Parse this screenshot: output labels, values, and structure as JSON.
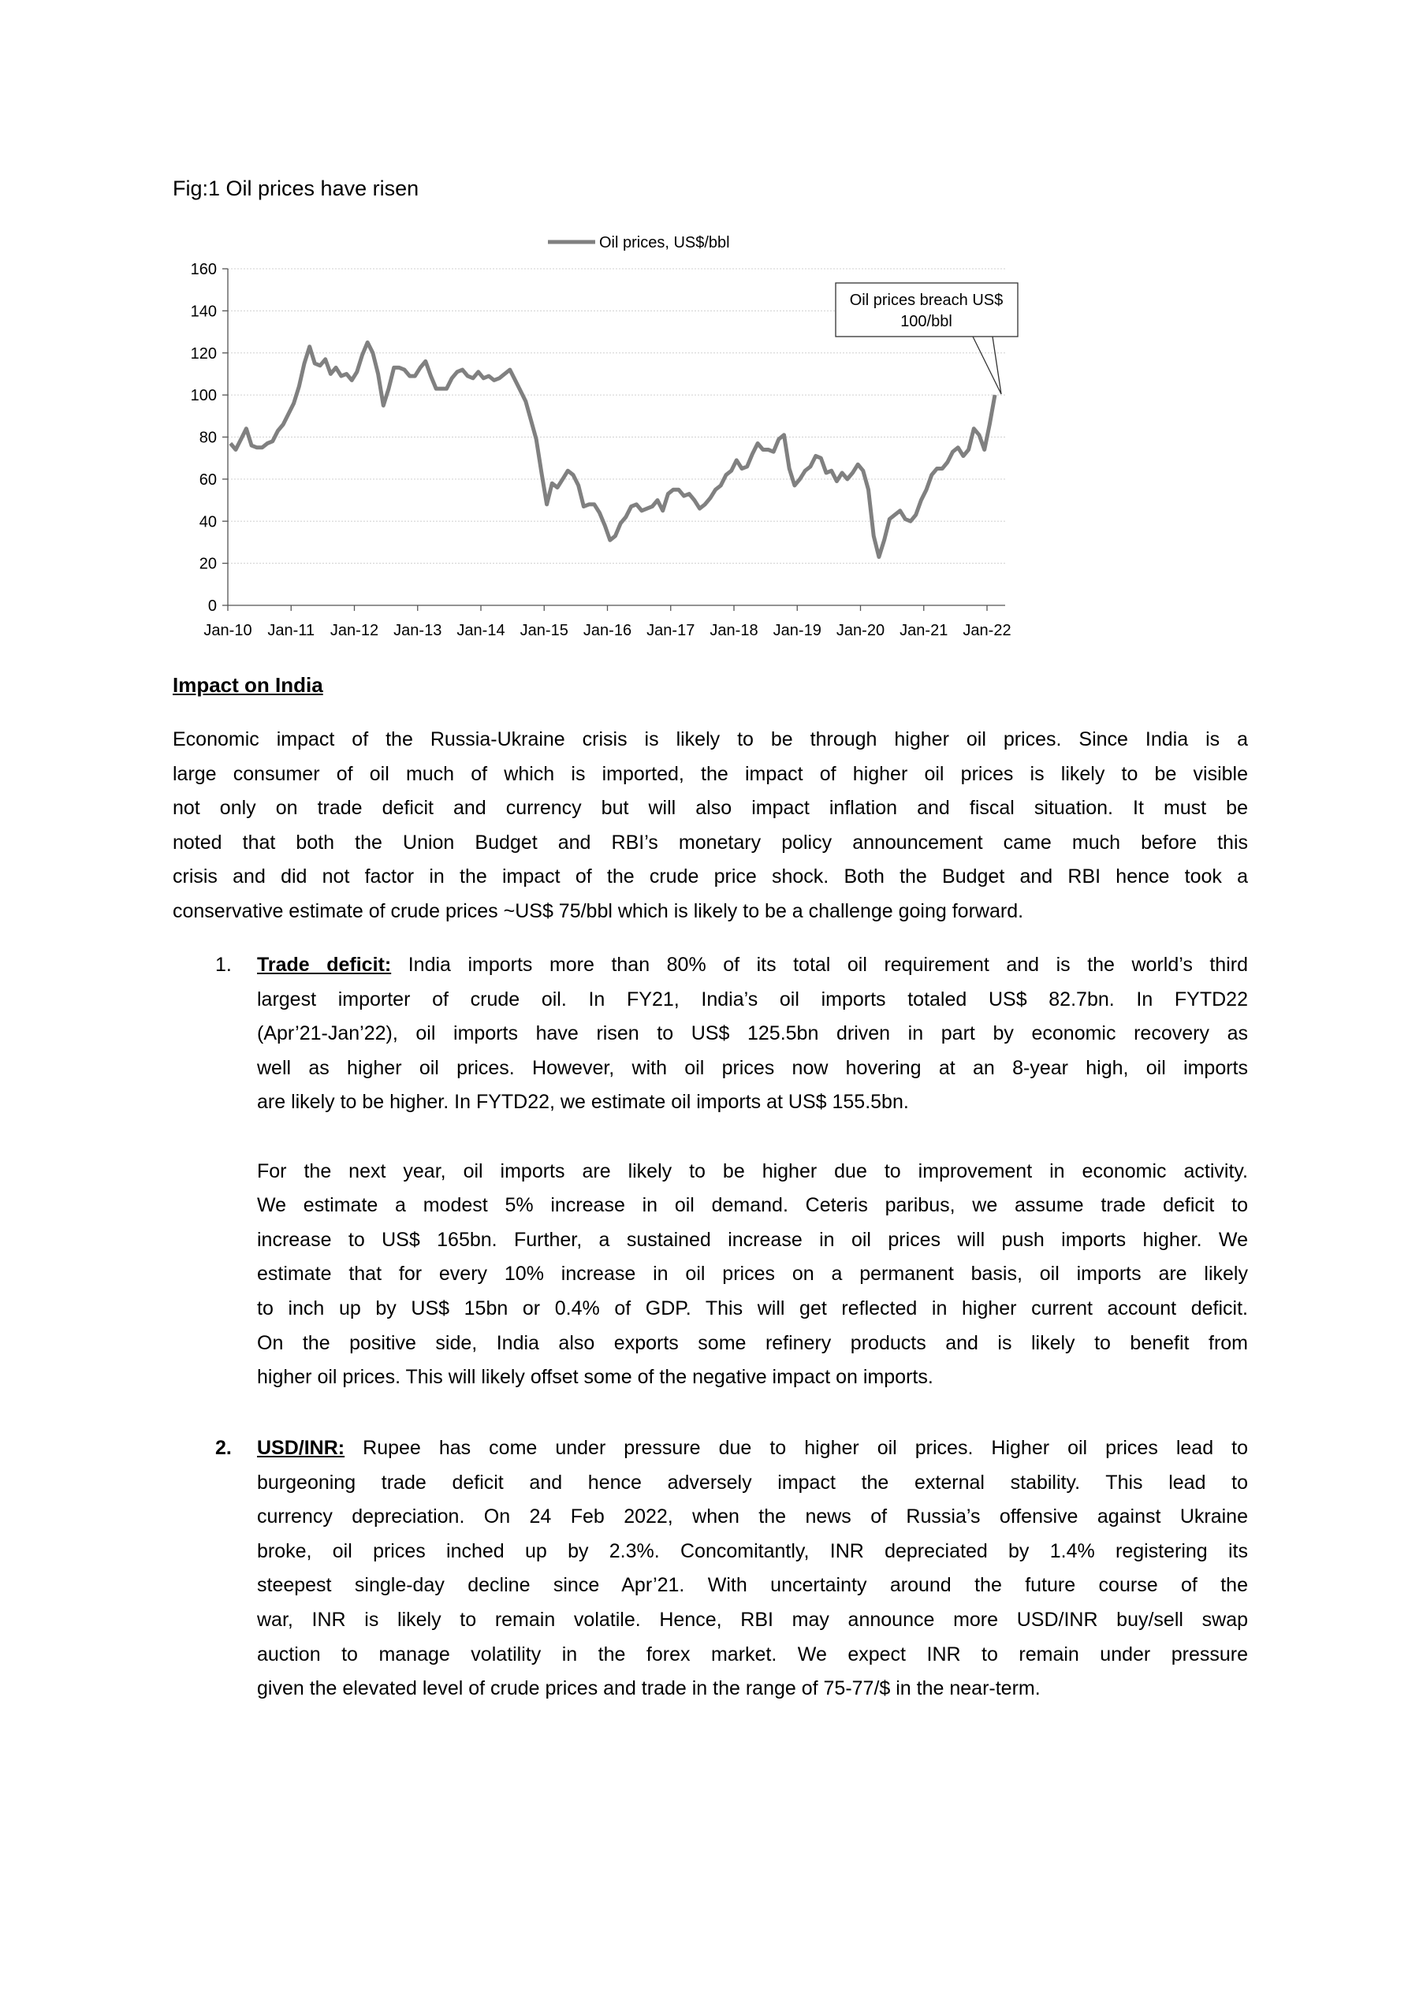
{
  "figure": {
    "title": "Fig:1 Oil prices have risen"
  },
  "chart_data": {
    "type": "line",
    "title": "",
    "legend": {
      "entries": [
        "Oil prices, US$/bbl"
      ],
      "placement": "top-center"
    },
    "series": [
      {
        "name": "Oil prices, US$/bbl",
        "color": "#808080",
        "x_start": "Jan-10",
        "frequency": "monthly",
        "values": [
          77,
          74,
          79,
          84,
          76,
          75,
          75,
          77,
          78,
          83,
          86,
          91,
          96,
          104,
          115,
          123,
          115,
          114,
          117,
          110,
          113,
          109,
          110,
          107,
          111,
          119,
          125,
          120,
          110,
          95,
          103,
          113,
          113,
          112,
          109,
          109,
          113,
          116,
          109,
          103,
          103,
          103,
          108,
          111,
          112,
          109,
          108,
          111,
          108,
          109,
          107,
          108,
          110,
          112,
          107,
          102,
          97,
          88,
          79,
          63,
          48,
          58,
          56,
          60,
          64,
          62,
          57,
          47,
          48,
          48,
          44,
          38,
          31,
          33,
          39,
          42,
          47,
          48,
          45,
          46,
          47,
          50,
          45,
          53,
          55,
          55,
          52,
          53,
          50,
          46,
          48,
          51,
          55,
          57,
          62,
          64,
          69,
          65,
          66,
          72,
          77,
          74,
          74,
          73,
          79,
          81,
          65,
          57,
          60,
          64,
          66,
          71,
          70,
          63,
          64,
          59,
          63,
          60,
          63,
          67,
          64,
          55,
          33,
          23,
          31,
          41,
          43,
          45,
          41,
          40,
          43,
          50,
          55,
          62,
          65,
          65,
          68,
          73,
          75,
          71,
          74,
          84,
          81,
          74,
          86,
          100
        ]
      }
    ],
    "x_tick_labels": [
      "Jan-10",
      "Jan-11",
      "Jan-12",
      "Jan-13",
      "Jan-14",
      "Jan-15",
      "Jan-16",
      "Jan-17",
      "Jan-18",
      "Jan-19",
      "Jan-20",
      "Jan-21",
      "Jan-22"
    ],
    "y_ticks": [
      0,
      20,
      40,
      60,
      80,
      100,
      120,
      140,
      160
    ],
    "ylim": [
      0,
      160
    ],
    "grid": "horizontal dotted",
    "annotation": {
      "text_lines": [
        "Oil prices breach US$",
        "100/bbl"
      ],
      "points_to": {
        "x": "Feb-22",
        "y": 100
      }
    }
  },
  "section": {
    "heading": "Impact on India",
    "intro_lines": [
      "Economic impact of the Russia-Ukraine crisis is likely to be through higher oil prices. Since India is a",
      "large consumer of oil much of which is imported, the impact of higher oil prices is likely to be visible",
      "not only on trade deficit and currency but will also impact inflation and fiscal situation.  It must be",
      "noted that both the Union Budget and RBI’s monetary policy announcement came much before this",
      "crisis and did not factor in the impact of the crude price shock. Both the Budget and RBI hence took a",
      "conservative estimate of crude prices ~US$ 75/bbl which is likely to be a challenge going forward."
    ],
    "items": [
      {
        "number": "1.",
        "lead": "Trade deficit:",
        "first_rest": " India imports more than 80% of its total oil requirement and is the world’s third",
        "lines": [
          "largest importer of crude oil. In FY21, India’s oil imports totaled US$ 82.7bn. In FYTD22",
          "(Apr’21-Jan’22), oil imports have risen to US$ 125.5bn driven in part by economic recovery as",
          "well as higher oil prices. However, with oil prices now hovering at an 8-year high, oil imports",
          "are likely to be higher. In FYTD22, we estimate oil imports at US$ 155.5bn."
        ],
        "para2_lines": [
          "For the next year, oil imports are likely to be higher due to improvement in economic activity.",
          "We estimate a modest 5% increase in oil demand. Ceteris paribus, we assume trade deficit to",
          "increase to US$ 165bn. Further, a sustained increase in oil prices will push imports higher. We",
          "estimate that for every 10% increase in oil prices on a permanent basis, oil imports are likely",
          "to inch up by US$ 15bn or 0.4% of GDP. This will get reflected in higher current account deficit.",
          "On the positive side, India also exports some refinery products and is likely to benefit from",
          "higher oil prices. This will likely offset some of the negative impact on imports."
        ]
      },
      {
        "number": "2.",
        "lead": "USD/INR:",
        "first_rest": " Rupee has come under pressure due to higher oil prices. Higher oil prices lead to",
        "lines": [
          "burgeoning trade deficit and hence adversely impact the external stability. This lead to",
          "currency depreciation. On 24 Feb 2022, when the news of Russia’s offensive against Ukraine",
          "broke, oil prices inched up by 2.3%. Concomitantly, INR depreciated by 1.4% registering its",
          "steepest single-day decline since Apr’21. With uncertainty around the future course of the",
          "war, INR is likely to remain volatile. Hence, RBI may announce more USD/INR buy/sell swap",
          "auction to manage volatility in the forex market. We expect INR to remain under pressure",
          "given the elevated level of crude prices and trade in the range of 75-77/$ in the near-term."
        ]
      }
    ]
  }
}
